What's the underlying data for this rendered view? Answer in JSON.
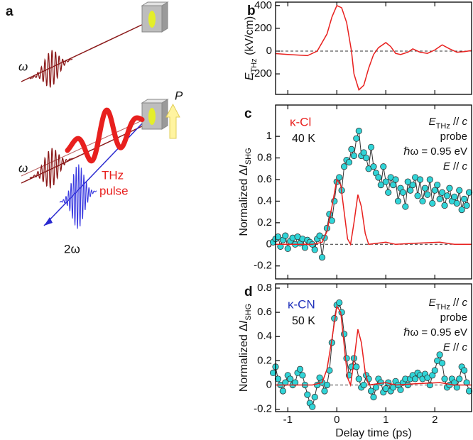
{
  "diagram": {
    "label": "a",
    "omega_top": "ω",
    "omega_bottom": "ω",
    "two_omega": "2ω",
    "thz": [
      "THz",
      "pulse"
    ],
    "polarization": "P"
  },
  "chart_data": [
    {
      "type": "line",
      "label": "b",
      "ylabel": [
        {
          "text": "E",
          "style": "italic"
        },
        {
          "text": "THz",
          "style": "sub"
        },
        {
          "text": " (kV/cm)"
        }
      ],
      "xlim": [
        -1.25,
        2.75
      ],
      "xticks": [
        -1,
        0,
        1,
        2
      ],
      "xticklabels": false,
      "ylim": [
        -380,
        430
      ],
      "yticks": [
        400,
        200,
        0,
        -200
      ],
      "hline": 0,
      "series": [
        {
          "color": "#e8201e",
          "style": "line",
          "x": [
            -1.3,
            -1.0,
            -0.6,
            -0.4,
            -0.2,
            -0.1,
            0,
            0.1,
            0.2,
            0.3,
            0.35,
            0.45,
            0.55,
            0.65,
            0.75,
            0.85,
            1.0,
            1.1,
            1.2,
            1.3,
            1.45,
            1.55,
            1.7,
            1.85,
            2.0,
            2.15,
            2.3,
            2.45,
            2.6,
            2.75
          ],
          "values": [
            -20,
            -30,
            -40,
            0,
            150,
            300,
            400,
            380,
            250,
            0,
            -200,
            -340,
            -300,
            -150,
            -30,
            30,
            75,
            40,
            -20,
            -30,
            -10,
            20,
            -10,
            -20,
            10,
            55,
            20,
            -10,
            -5,
            5
          ]
        }
      ]
    },
    {
      "type": "line",
      "label": "c",
      "ylabel": [
        {
          "text": "Normalized Δ"
        },
        {
          "text": "I",
          "style": "italic"
        },
        {
          "text": "SHG",
          "style": "sub"
        }
      ],
      "xlim": [
        -1.25,
        2.75
      ],
      "xticks": [
        -1,
        0,
        1,
        2
      ],
      "xticklabels": false,
      "ylim": [
        -0.32,
        1.29
      ],
      "yticks": [
        -0.2,
        0,
        0.2,
        0.4,
        0.6,
        0.8,
        1
      ],
      "hline": 0,
      "sample": {
        "text": "κ-Cl",
        "color": "#e8201e"
      },
      "temperature": "40 K",
      "conditions": [
        [
          {
            "text": "E",
            "style": "italic"
          },
          {
            "text": "THz",
            "style": "sub"
          },
          {
            "text": " // "
          },
          {
            "text": "c",
            "style": "italic"
          }
        ],
        [
          {
            "text": "probe"
          }
        ],
        [
          {
            "text": "ℏω = 0.95 eV"
          }
        ],
        [
          {
            "text": "E",
            "style": "italic"
          },
          {
            "text": " // "
          },
          {
            "text": "c",
            "style": "italic"
          }
        ]
      ],
      "series": [
        {
          "color": "#30d5d8",
          "line_color": "#333333",
          "style": "markers+line",
          "x": [
            -1.3,
            -1.25,
            -1.2,
            -1.15,
            -1.1,
            -1.05,
            -1.0,
            -0.95,
            -0.9,
            -0.85,
            -0.8,
            -0.75,
            -0.7,
            -0.65,
            -0.6,
            -0.55,
            -0.5,
            -0.45,
            -0.4,
            -0.35,
            -0.3,
            -0.25,
            -0.2,
            -0.15,
            -0.1,
            -0.05,
            0,
            0.05,
            0.1,
            0.15,
            0.2,
            0.25,
            0.3,
            0.35,
            0.4,
            0.45,
            0.5,
            0.55,
            0.6,
            0.65,
            0.7,
            0.75,
            0.8,
            0.85,
            0.9,
            0.95,
            1.0,
            1.05,
            1.1,
            1.15,
            1.2,
            1.25,
            1.3,
            1.35,
            1.4,
            1.45,
            1.5,
            1.55,
            1.6,
            1.65,
            1.7,
            1.75,
            1.8,
            1.85,
            1.9,
            1.95,
            2.0,
            2.05,
            2.1,
            2.15,
            2.2,
            2.25,
            2.3,
            2.35,
            2.4,
            2.45,
            2.5,
            2.55,
            2.6,
            2.65,
            2.7
          ],
          "values": [
            0.02,
            0.05,
            0.07,
            -0.02,
            0.04,
            0.08,
            -0.04,
            0.03,
            0.06,
            0.0,
            0.07,
            0.01,
            0.05,
            -0.03,
            0.04,
            0.02,
            0.0,
            -0.05,
            0.05,
            0.08,
            -0.12,
            0.06,
            0.15,
            0.28,
            0.22,
            0.4,
            0.58,
            0.62,
            0.5,
            0.72,
            0.78,
            0.76,
            0.88,
            0.82,
            0.98,
            1.05,
            0.82,
            0.85,
            0.8,
            0.7,
            0.9,
            0.72,
            0.66,
            0.62,
            0.55,
            0.72,
            0.58,
            0.48,
            0.62,
            0.55,
            0.6,
            0.4,
            0.52,
            0.48,
            0.35,
            0.58,
            0.5,
            0.55,
            0.62,
            0.45,
            0.6,
            0.4,
            0.52,
            0.46,
            0.6,
            0.38,
            0.5,
            0.55,
            0.42,
            0.48,
            0.36,
            0.45,
            0.52,
            0.4,
            0.44,
            0.38,
            0.5,
            0.32,
            0.42,
            0.36,
            0.48
          ]
        },
        {
          "color": "#e8201e",
          "style": "line",
          "x": [
            -1.3,
            -0.5,
            -0.3,
            -0.2,
            -0.1,
            0,
            0.08,
            0.15,
            0.22,
            0.28,
            0.35,
            0.43,
            0.5,
            0.58,
            0.65,
            1.0,
            1.2,
            1.6,
            2.1,
            2.4,
            2.75
          ],
          "values": [
            0,
            0,
            0.02,
            0.12,
            0.35,
            0.6,
            0.55,
            0.3,
            0.05,
            0,
            0.2,
            0.46,
            0.35,
            0.1,
            0,
            0.02,
            0,
            0.01,
            0.02,
            0,
            0
          ]
        }
      ]
    },
    {
      "type": "line",
      "label": "d",
      "ylabel": [
        {
          "text": "Normalized Δ"
        },
        {
          "text": "I",
          "style": "italic"
        },
        {
          "text": "SHG",
          "style": "sub"
        }
      ],
      "xlabel": "Delay time (ps)",
      "xlim": [
        -1.25,
        2.75
      ],
      "xticks": [
        -1,
        0,
        1,
        2
      ],
      "xticklabels": true,
      "ylim": [
        -0.22,
        0.835
      ],
      "yticks": [
        -0.2,
        0,
        0.2,
        0.4,
        0.6,
        0.8
      ],
      "hline": 0,
      "sample": {
        "text": "κ-CN",
        "color": "#2233bb"
      },
      "temperature": "50 K",
      "conditions": [
        [
          {
            "text": "E",
            "style": "italic"
          },
          {
            "text": "THz",
            "style": "sub"
          },
          {
            "text": " // "
          },
          {
            "text": "c",
            "style": "italic"
          }
        ],
        [
          {
            "text": "probe"
          }
        ],
        [
          {
            "text": "ℏω = 0.95 eV"
          }
        ],
        [
          {
            "text": "E",
            "style": "italic"
          },
          {
            "text": " // "
          },
          {
            "text": "c",
            "style": "italic"
          }
        ]
      ],
      "series": [
        {
          "color": "#30d5d8",
          "line_color": "#333333",
          "style": "markers+line",
          "x": [
            -1.3,
            -1.25,
            -1.2,
            -1.15,
            -1.1,
            -1.05,
            -1.0,
            -0.95,
            -0.9,
            -0.85,
            -0.8,
            -0.75,
            -0.7,
            -0.65,
            -0.6,
            -0.55,
            -0.5,
            -0.45,
            -0.4,
            -0.35,
            -0.3,
            -0.25,
            -0.2,
            -0.15,
            -0.1,
            -0.05,
            0,
            0.05,
            0.1,
            0.15,
            0.2,
            0.25,
            0.3,
            0.35,
            0.4,
            0.45,
            0.5,
            0.55,
            0.6,
            0.65,
            0.7,
            0.75,
            0.8,
            0.85,
            0.9,
            0.95,
            1.0,
            1.05,
            1.1,
            1.15,
            1.2,
            1.25,
            1.3,
            1.35,
            1.4,
            1.45,
            1.5,
            1.55,
            1.6,
            1.65,
            1.7,
            1.75,
            1.8,
            1.85,
            1.9,
            1.95,
            2.0,
            2.05,
            2.1,
            2.15,
            2.2,
            2.25,
            2.3,
            2.35,
            2.4,
            2.45,
            2.5,
            2.55,
            2.6,
            2.65,
            2.7
          ],
          "values": [
            0.1,
            0.15,
            0.05,
            0.0,
            -0.05,
            0.02,
            0.08,
            0.05,
            0.0,
            0.02,
            0.1,
            0.13,
            0.08,
            0.0,
            -0.08,
            -0.15,
            -0.18,
            -0.1,
            0.0,
            0.06,
            0.02,
            -0.05,
            0.0,
            0.12,
            0.35,
            0.55,
            0.66,
            0.68,
            0.6,
            0.42,
            0.22,
            0.08,
            0.15,
            0.22,
            0.15,
            0.05,
            -0.02,
            0.0,
            0.08,
            0.05,
            -0.05,
            -0.1,
            -0.02,
            0.05,
            0.02,
            -0.06,
            -0.03,
            0.02,
            -0.05,
            -0.02,
            0.03,
            0.0,
            -0.04,
            0.02,
            0.05,
            0.0,
            0.05,
            0.08,
            0.05,
            0.1,
            0.08,
            0.05,
            0.09,
            0.06,
            0.0,
            0.08,
            0.12,
            0.2,
            0.25,
            0.18,
            0.05,
            -0.02,
            0.0,
            0.05,
            0.02,
            -0.02,
            0.05,
            0.15,
            0.12,
            0.02,
            -0.05
          ]
        },
        {
          "color": "#e8201e",
          "style": "line",
          "x": [
            -1.3,
            -0.5,
            -0.3,
            -0.2,
            -0.1,
            0,
            0.08,
            0.15,
            0.22,
            0.28,
            0.35,
            0.43,
            0.5,
            0.58,
            0.65,
            1.0,
            1.2,
            1.6,
            2.1,
            2.4,
            2.75
          ],
          "values": [
            0,
            0,
            0.02,
            0.13,
            0.38,
            0.65,
            0.6,
            0.33,
            0.06,
            0,
            0.2,
            0.46,
            0.35,
            0.1,
            0,
            0.02,
            0,
            0.01,
            0.02,
            0,
            0
          ]
        }
      ]
    }
  ]
}
